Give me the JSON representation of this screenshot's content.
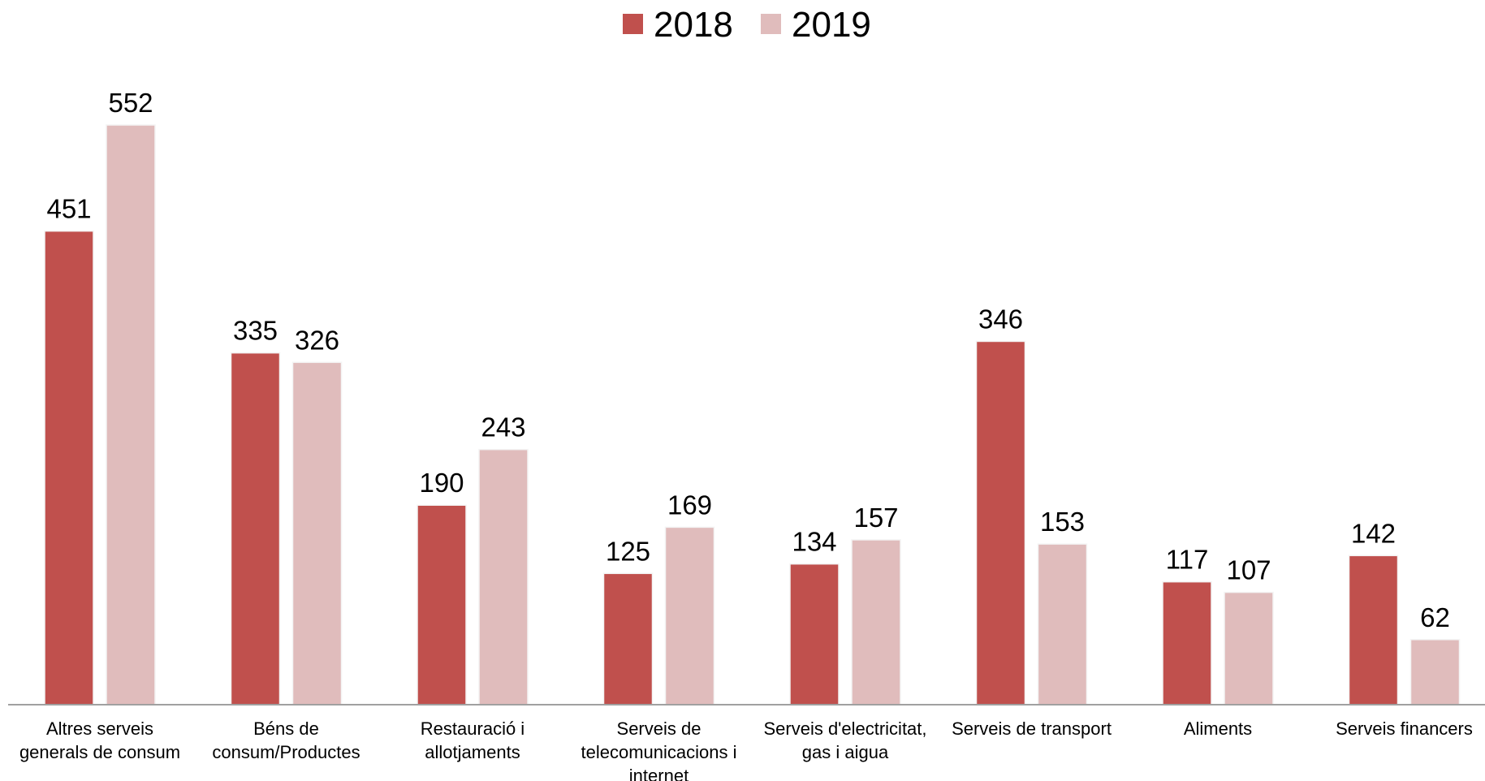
{
  "chart_data": {
    "type": "bar",
    "categories": [
      [
        "Altres serveis",
        "generals de consum"
      ],
      [
        "Béns de",
        "consum/Productes"
      ],
      [
        "Restauració i",
        "allotjaments"
      ],
      [
        "Serveis de",
        "telecomunicacions i",
        "internet"
      ],
      [
        "Serveis d'electricitat,",
        "gas i aigua"
      ],
      [
        "Serveis de transport"
      ],
      [
        "Aliments"
      ],
      [
        "Serveis financers"
      ]
    ],
    "series": [
      {
        "name": "2018",
        "color": "#c0504d",
        "values": [
          451,
          335,
          190,
          125,
          134,
          346,
          117,
          142
        ]
      },
      {
        "name": "2019",
        "color": "#e0bcbc",
        "values": [
          552,
          326,
          243,
          169,
          157,
          153,
          107,
          62
        ]
      }
    ],
    "legend_position": "top-center",
    "grid": false,
    "ylim": [
      0,
      552
    ]
  }
}
